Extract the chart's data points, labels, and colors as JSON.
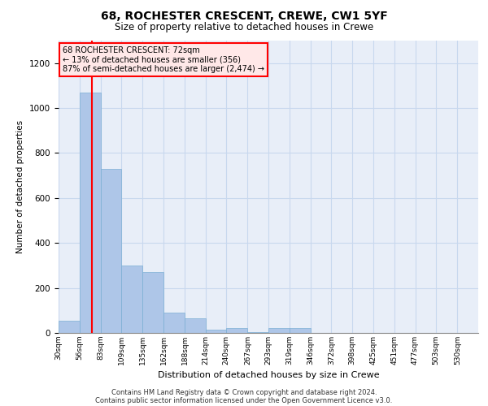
{
  "title1": "68, ROCHESTER CRESCENT, CREWE, CW1 5YF",
  "title2": "Size of property relative to detached houses in Crewe",
  "xlabel": "Distribution of detached houses by size in Crewe",
  "ylabel": "Number of detached properties",
  "bar_color": "#aec6e8",
  "bar_edge_color": "#7bafd4",
  "grid_color": "#c8d8ee",
  "bg_color": "#e8eef8",
  "annotation_box_color": "#ffe8e8",
  "annotation_border_color": "red",
  "vline_color": "red",
  "vline_x": 72,
  "annotation_title": "68 ROCHESTER CRESCENT: 72sqm",
  "annotation_line1": "← 13% of detached houses are smaller (356)",
  "annotation_line2": "87% of semi-detached houses are larger (2,474) →",
  "bin_edges": [
    30,
    56,
    83,
    109,
    135,
    162,
    188,
    214,
    240,
    267,
    293,
    319,
    346,
    372,
    398,
    425,
    451,
    477,
    503,
    530,
    556
  ],
  "bar_heights": [
    55,
    1070,
    730,
    300,
    270,
    90,
    65,
    15,
    20,
    5,
    20,
    20,
    0,
    0,
    0,
    0,
    0,
    0,
    0,
    0
  ],
  "ylim": [
    0,
    1300
  ],
  "yticks": [
    0,
    200,
    400,
    600,
    800,
    1000,
    1200
  ],
  "footnote1": "Contains HM Land Registry data © Crown copyright and database right 2024.",
  "footnote2": "Contains public sector information licensed under the Open Government Licence v3.0."
}
